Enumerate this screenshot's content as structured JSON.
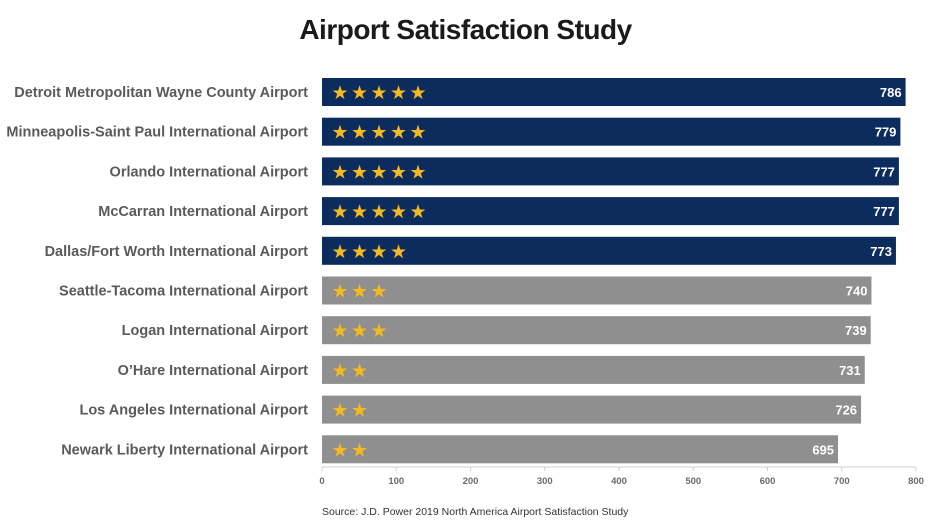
{
  "source_text": "Source: J.D. Power 2019 North America Airport Satisfaction Study",
  "colors": {
    "top_bar": "#0d2c5e",
    "other_bar": "#8f8f8f",
    "star": "#f5b921",
    "value_text": "#ffffff"
  },
  "chart_data": {
    "type": "bar",
    "orientation": "horizontal",
    "title": "Airport Satisfaction Study",
    "categories": [
      "Detroit Metropolitan Wayne County Airport",
      "Minneapolis-Saint Paul International Airport",
      "Orlando International Airport",
      "McCarran International Airport",
      "Dallas/Fort Worth International Airport",
      "Seattle-Tacoma International Airport",
      "Logan International Airport",
      "O’Hare International Airport",
      "Los Angeles International Airport",
      "Newark Liberty International Airport"
    ],
    "values": [
      786,
      779,
      777,
      777,
      773,
      740,
      739,
      731,
      726,
      695
    ],
    "stars": [
      5,
      5,
      5,
      5,
      4,
      3,
      3,
      2,
      2,
      2
    ],
    "highlight": [
      true,
      true,
      true,
      true,
      true,
      false,
      false,
      false,
      false,
      false
    ],
    "xlim": [
      0,
      800
    ],
    "xticks": [
      0,
      100,
      200,
      300,
      400,
      500,
      600,
      700,
      800
    ],
    "grid": false,
    "legend": "none"
  }
}
